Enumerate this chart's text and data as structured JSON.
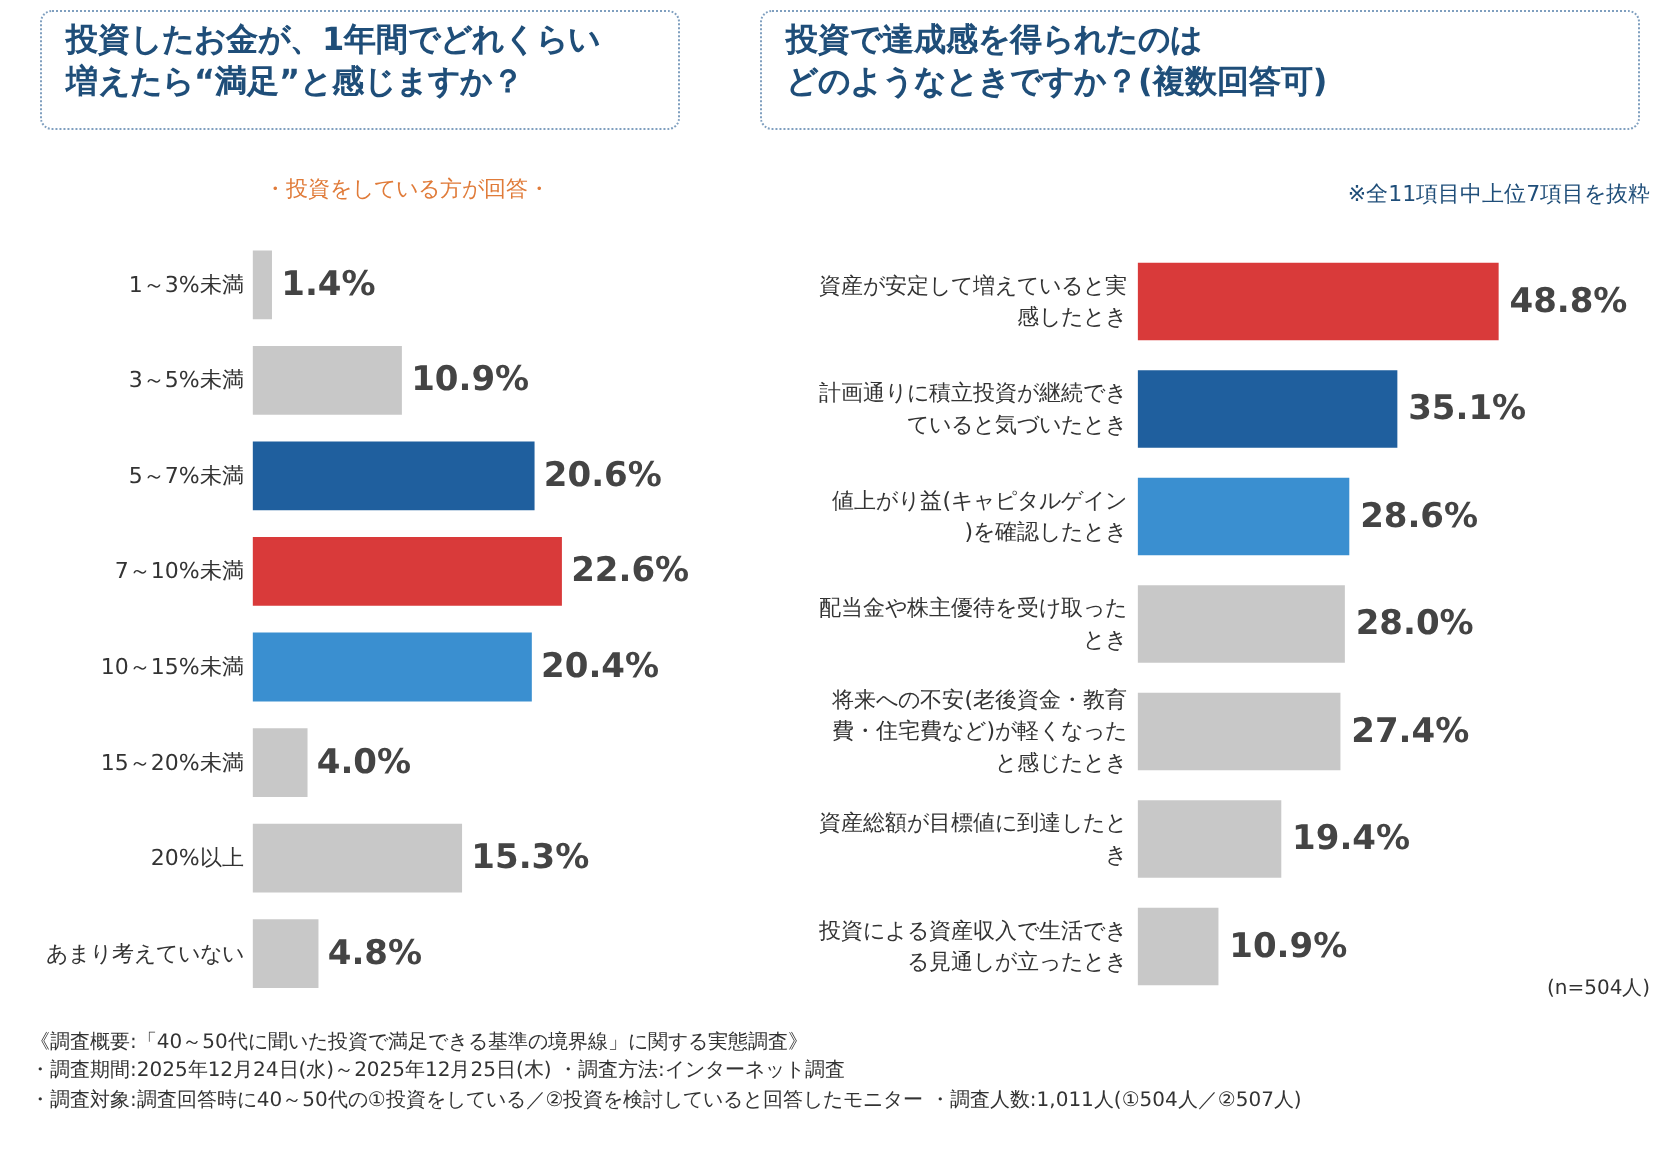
{
  "chart_data": [
    {
      "type": "bar",
      "orientation": "horizontal",
      "title": "投資したお金が、1年間でどれくらい増えたら“満足”と感じますか？",
      "categories": [
        "1～3%未満",
        "3～5%未満",
        "5～7%未満",
        "7～10%未満",
        "10～15%未満",
        "15～20%未満",
        "20%以上",
        "あまり考えていない"
      ],
      "values": [
        1.4,
        10.9,
        20.6,
        22.6,
        20.4,
        4.0,
        15.3,
        4.8
      ],
      "colors": [
        "#c8c8c8",
        "#c8c8c8",
        "#1f5f9e",
        "#d93a3a",
        "#3a8fd0",
        "#c8c8c8",
        "#c8c8c8",
        "#c8c8c8"
      ],
      "value_labels": [
        "1.4%",
        "10.9%",
        "20.6%",
        "22.6%",
        "20.4%",
        "4.0%",
        "15.3%",
        "4.8%"
      ],
      "annotations": [
        "・投資をしている方が回答・",
        "《調査概要:「40～50代に聞いた投資で満足できる基準の境界線」に関する実態調査》",
        "・調査期間:2025年12月24日(水)～2025年12月25日(木) ・調査方法:インターネット調査",
        "・調査対象:調査回答時に40～50代の①投資をしている／②投資を検討していると回答したモニター ・調査人数:1,011人(①504人／②507人)"
      ]
    },
    {
      "type": "bar",
      "orientation": "horizontal",
      "title": "投資で達成感を得られたのはどのようなときですか？(複数回答可)",
      "categories": [
        "資産が安定して増えていると実感したとき",
        "計画通りに積立投資が継続できていると気づいたとき",
        "値上がり益(キャピタルゲイン)を確認したとき",
        "配当金や株主優待を受け取ったとき",
        "将来への不安(老後資金・教育費・住宅費など)が軽くなったと感じたとき",
        "資産総額が目標値に到達したとき",
        "投資による資産収入で生活できる見通しが立ったとき"
      ],
      "values": [
        48.8,
        35.1,
        28.6,
        28.0,
        27.4,
        19.4,
        10.9
      ],
      "colors": [
        "#d93a3a",
        "#1f5f9e",
        "#3a8fd0",
        "#c8c8c8",
        "#c8c8c8",
        "#c8c8c8",
        "#c8c8c8"
      ],
      "value_labels": [
        "48.8%",
        "35.1%",
        "28.6%",
        "28.0%",
        "27.4%",
        "19.4%",
        "10.9%"
      ],
      "annotations": [
        "※全11項目中上位7項目を抜粋",
        "(n=504人)"
      ]
    }
  ]
}
